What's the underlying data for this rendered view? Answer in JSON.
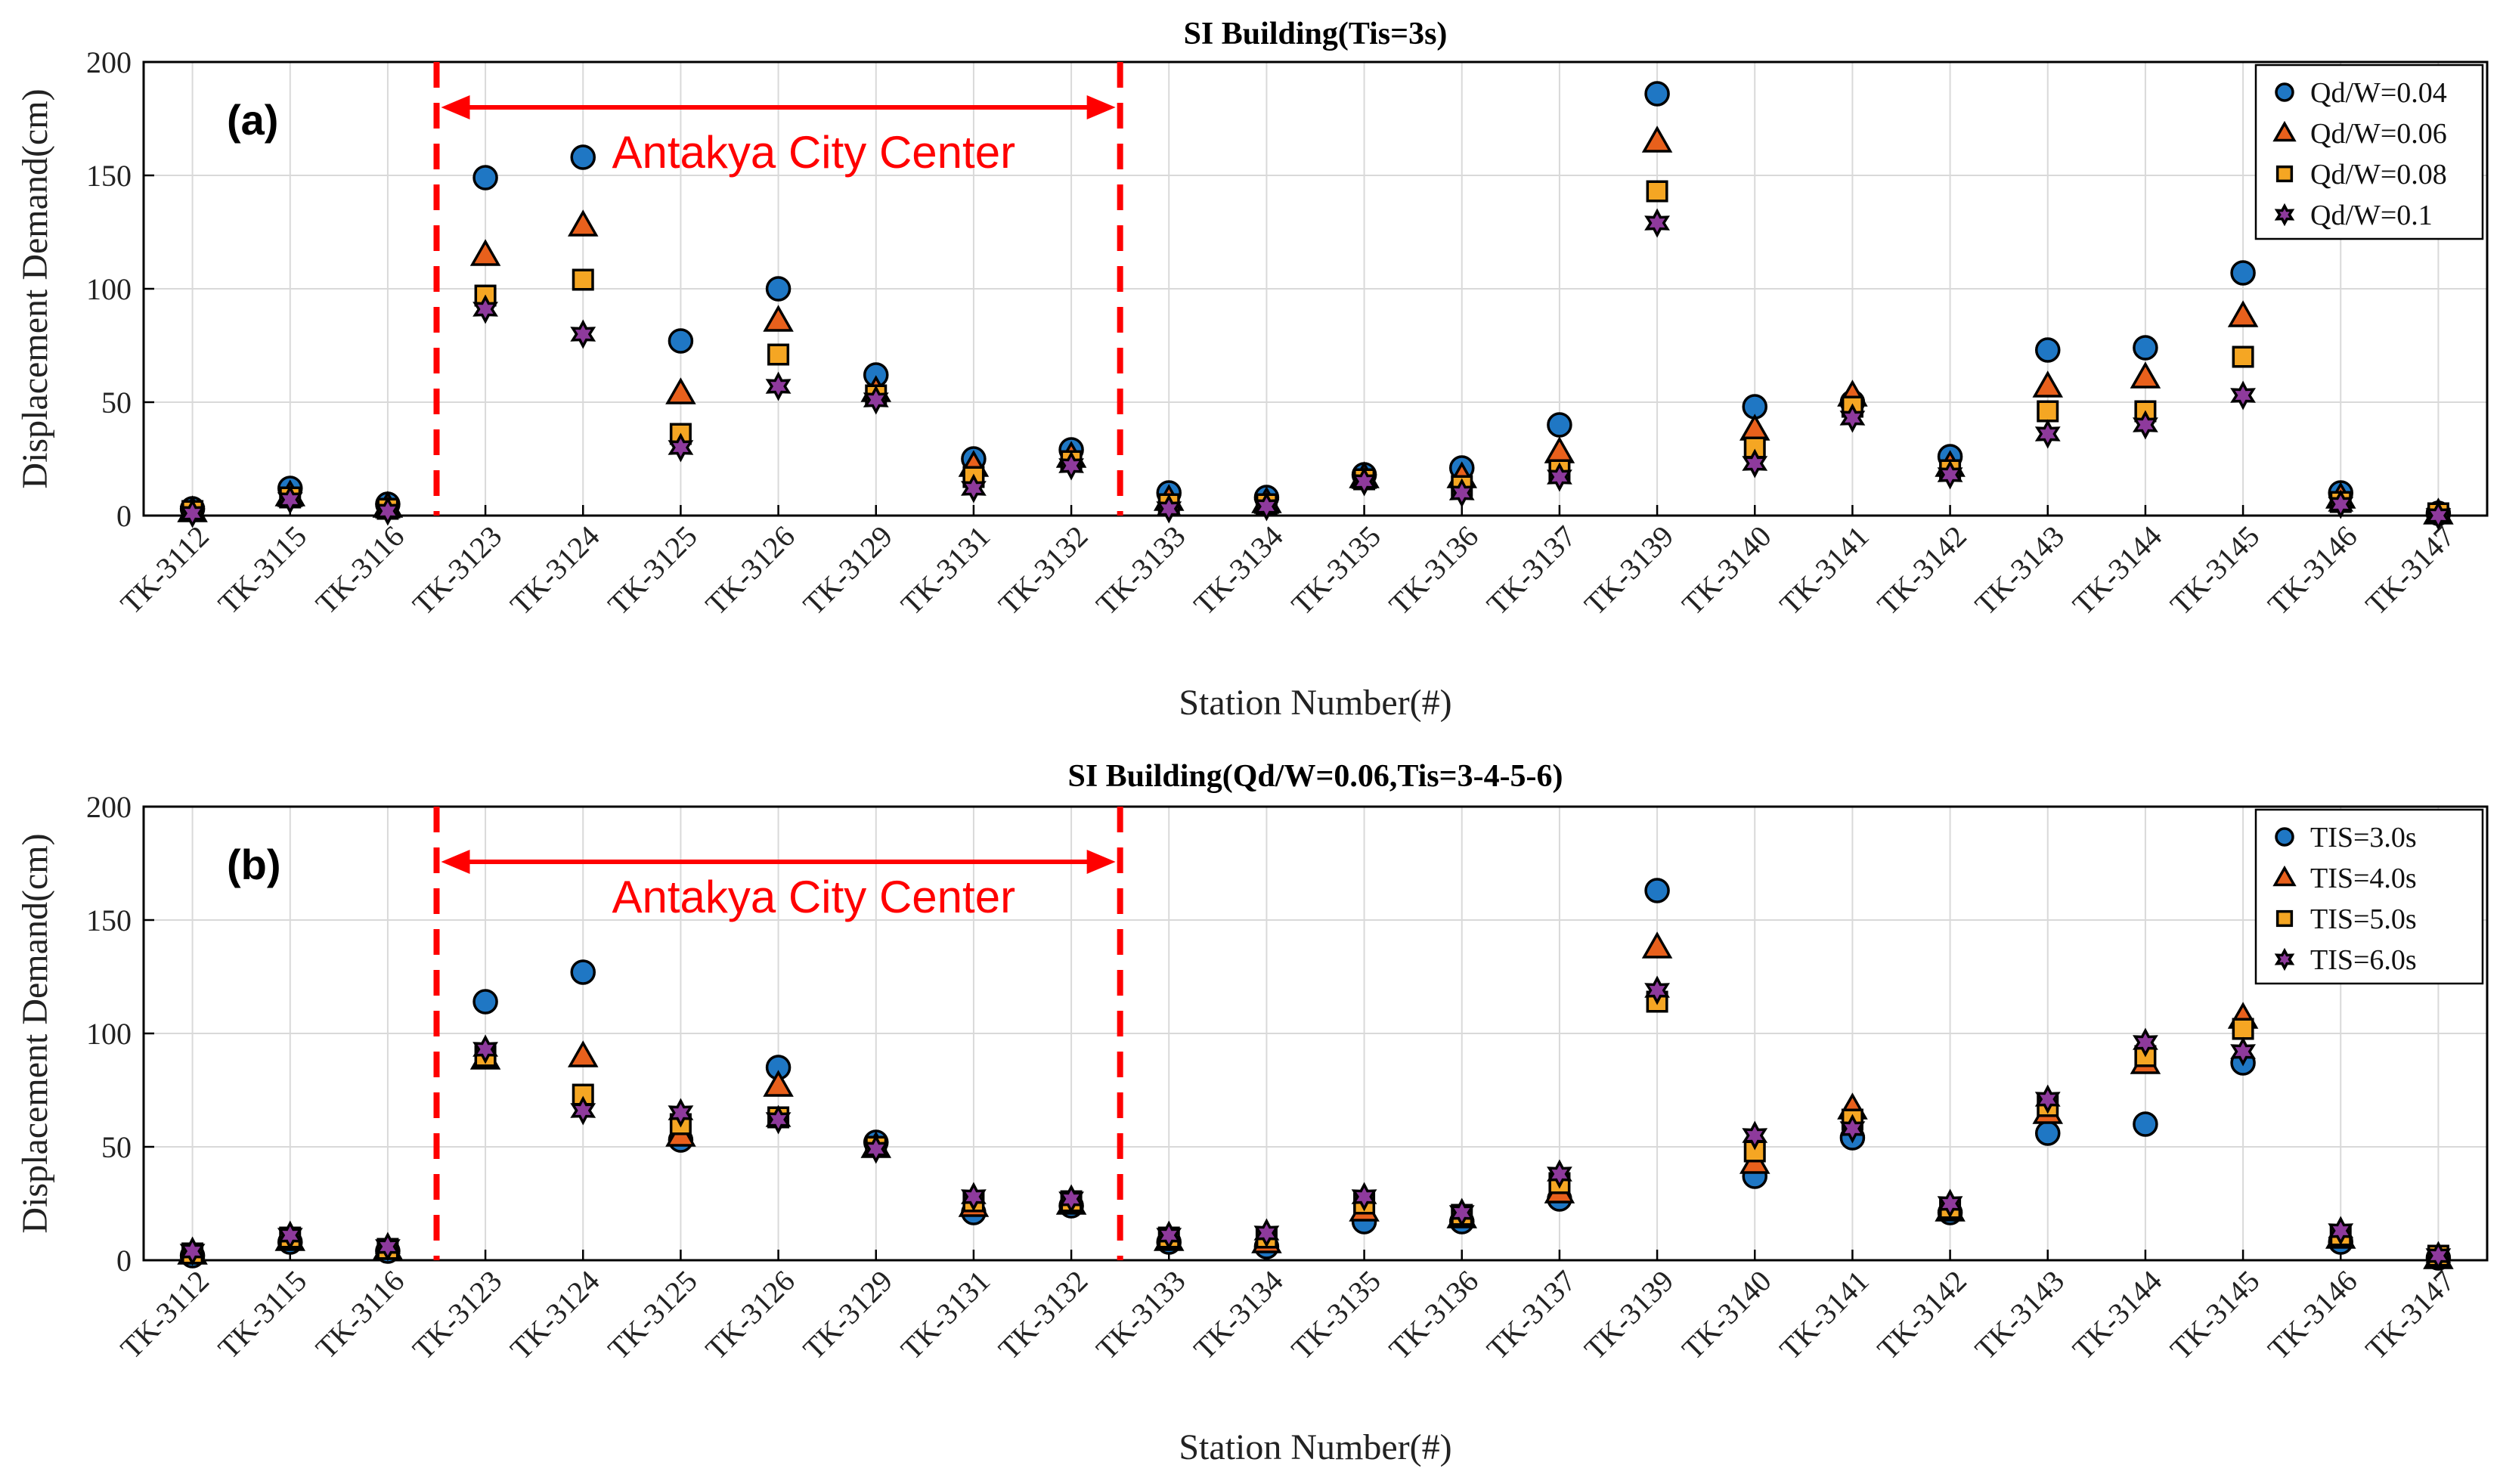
{
  "chart_data": [
    {
      "type": "scatter",
      "panel_label": "(a)",
      "title": "SI Building(Tis=3s)",
      "xlabel": "Station Number(#)",
      "ylabel": "Displacement Demand(cm)",
      "ylim": [
        0,
        200
      ],
      "yticks": [
        0,
        50,
        100,
        150,
        200
      ],
      "grid": true,
      "legend_position": "top-right",
      "categories": [
        "TK-3112",
        "TK-3115",
        "TK-3116",
        "TK-3123",
        "TK-3124",
        "TK-3125",
        "TK-3126",
        "TK-3129",
        "TK-3131",
        "TK-3132",
        "TK-3133",
        "TK-3134",
        "TK-3135",
        "TK-3136",
        "TK-3137",
        "TK-3139",
        "TK-3140",
        "TK-3141",
        "TK-3142",
        "TK-3143",
        "TK-3144",
        "TK-3145",
        "TK-3146",
        "TK-3147"
      ],
      "annotation": {
        "text": "Antakya City Center",
        "from": "TK-3116",
        "to": "TK-3132"
      },
      "series": [
        {
          "name": "Qd/W=0.04",
          "marker": "circle",
          "color": "#1f77c4",
          "values": [
            3,
            12,
            5,
            149,
            158,
            77,
            100,
            62,
            25,
            29,
            10,
            8,
            18,
            21,
            40,
            186,
            48,
            50,
            26,
            73,
            74,
            107,
            10,
            1
          ]
        },
        {
          "name": "Qd/W=0.06",
          "marker": "triangle",
          "color": "#e8601c",
          "values": [
            2,
            9,
            4,
            115,
            128,
            54,
            86,
            55,
            22,
            26,
            7,
            6,
            17,
            17,
            28,
            165,
            38,
            53,
            22,
            57,
            61,
            88,
            8,
            1
          ]
        },
        {
          "name": "Qd/W=0.08",
          "marker": "square",
          "color": "#f5a623",
          "values": [
            2,
            8,
            3,
            97,
            104,
            36,
            71,
            53,
            17,
            24,
            5,
            5,
            16,
            13,
            20,
            143,
            30,
            48,
            20,
            46,
            46,
            70,
            6,
            1
          ]
        },
        {
          "name": "Qd/W=0.1",
          "marker": "star",
          "color": "#8e3a9c",
          "values": [
            1,
            7,
            2,
            91,
            80,
            30,
            57,
            51,
            12,
            22,
            3,
            4,
            15,
            10,
            17,
            129,
            23,
            43,
            18,
            36,
            40,
            53,
            5,
            0
          ]
        }
      ]
    },
    {
      "type": "scatter",
      "panel_label": "(b)",
      "title": "SI Building(Qd/W=0.06,Tis=3-4-5-6)",
      "xlabel": "Station Number(#)",
      "ylabel": "Displacement Demand(cm)",
      "ylim": [
        0,
        200
      ],
      "yticks": [
        0,
        50,
        100,
        150,
        200
      ],
      "grid": true,
      "legend_position": "top-right",
      "categories": [
        "TK-3112",
        "TK-3115",
        "TK-3116",
        "TK-3123",
        "TK-3124",
        "TK-3125",
        "TK-3126",
        "TK-3129",
        "TK-3131",
        "TK-3132",
        "TK-3133",
        "TK-3134",
        "TK-3135",
        "TK-3136",
        "TK-3137",
        "TK-3139",
        "TK-3140",
        "TK-3141",
        "TK-3142",
        "TK-3143",
        "TK-3144",
        "TK-3145",
        "TK-3146",
        "TK-3147"
      ],
      "annotation": {
        "text": "Antakya City Center",
        "from": "TK-3116",
        "to": "TK-3132"
      },
      "series": [
        {
          "name": "TIS=3.0s",
          "marker": "circle",
          "color": "#1f77c4",
          "values": [
            2,
            8,
            4,
            114,
            127,
            53,
            85,
            52,
            21,
            24,
            8,
            6,
            17,
            17,
            27,
            163,
            37,
            54,
            21,
            56,
            60,
            87,
            8,
            1
          ]
        },
        {
          "name": "TIS=4.0s",
          "marker": "triangle",
          "color": "#e8601c",
          "values": [
            3,
            9,
            5,
            89,
            90,
            55,
            77,
            50,
            24,
            25,
            9,
            8,
            22,
            19,
            30,
            138,
            43,
            67,
            22,
            65,
            87,
            107,
            10,
            1
          ]
        },
        {
          "name": "TIS=5.0s",
          "marker": "square",
          "color": "#f5a623",
          "values": [
            3,
            10,
            5,
            90,
            73,
            60,
            63,
            50,
            26,
            26,
            10,
            10,
            25,
            20,
            34,
            114,
            48,
            62,
            23,
            68,
            90,
            102,
            11,
            2
          ]
        },
        {
          "name": "TIS=6.0s",
          "marker": "star",
          "color": "#8e3a9c",
          "values": [
            4,
            11,
            6,
            93,
            66,
            65,
            62,
            49,
            28,
            27,
            11,
            12,
            28,
            21,
            38,
            119,
            55,
            58,
            25,
            71,
            96,
            92,
            13,
            2
          ]
        }
      ]
    }
  ]
}
